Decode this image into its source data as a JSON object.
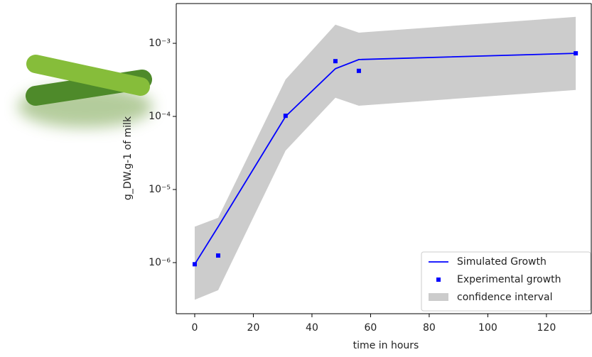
{
  "chart_data": {
    "type": "line",
    "log_y": true,
    "xlabel": "time in hours",
    "ylabel": "g_DW.g-1 of milk",
    "xlim": [
      -6.3,
      135.3
    ],
    "xticks": [
      0,
      20,
      40,
      60,
      80,
      100,
      120
    ],
    "ylim": [
      2e-07,
      0.0035
    ],
    "yticks": [
      {
        "value": 1e-06,
        "label": "10⁻⁶"
      },
      {
        "value": 1e-05,
        "label": "10⁻⁵"
      },
      {
        "value": 0.0001,
        "label": "10⁻⁴"
      },
      {
        "value": 0.001,
        "label": "10⁻³"
      }
    ],
    "legend": "lower right",
    "series": [
      {
        "name": "Simulated Growth",
        "kind": "line",
        "color": "#0000ff",
        "x": [
          0,
          8,
          31,
          48,
          56,
          130
        ],
        "values": [
          9.5e-07,
          3.1e-06,
          0.0001,
          0.00045,
          0.0006,
          0.00073
        ]
      },
      {
        "name": "Experimental growth",
        "kind": "scatter",
        "color": "#0000ff",
        "x": [
          0,
          8,
          31,
          48,
          56,
          130
        ],
        "values": [
          9.5e-07,
          1.25e-06,
          0.000102,
          0.00057,
          0.00042,
          0.00073
        ]
      },
      {
        "name": "confidence interval",
        "kind": "band",
        "color": "#cccccc",
        "x": [
          0,
          8,
          31,
          48,
          56,
          130
        ],
        "lower": [
          3.1e-07,
          4.2e-07,
          3.4e-05,
          0.00018,
          0.00014,
          0.00023
        ],
        "upper": [
          3.1e-06,
          4.1e-06,
          0.00032,
          0.0018,
          0.0014,
          0.0023
        ]
      }
    ]
  }
}
